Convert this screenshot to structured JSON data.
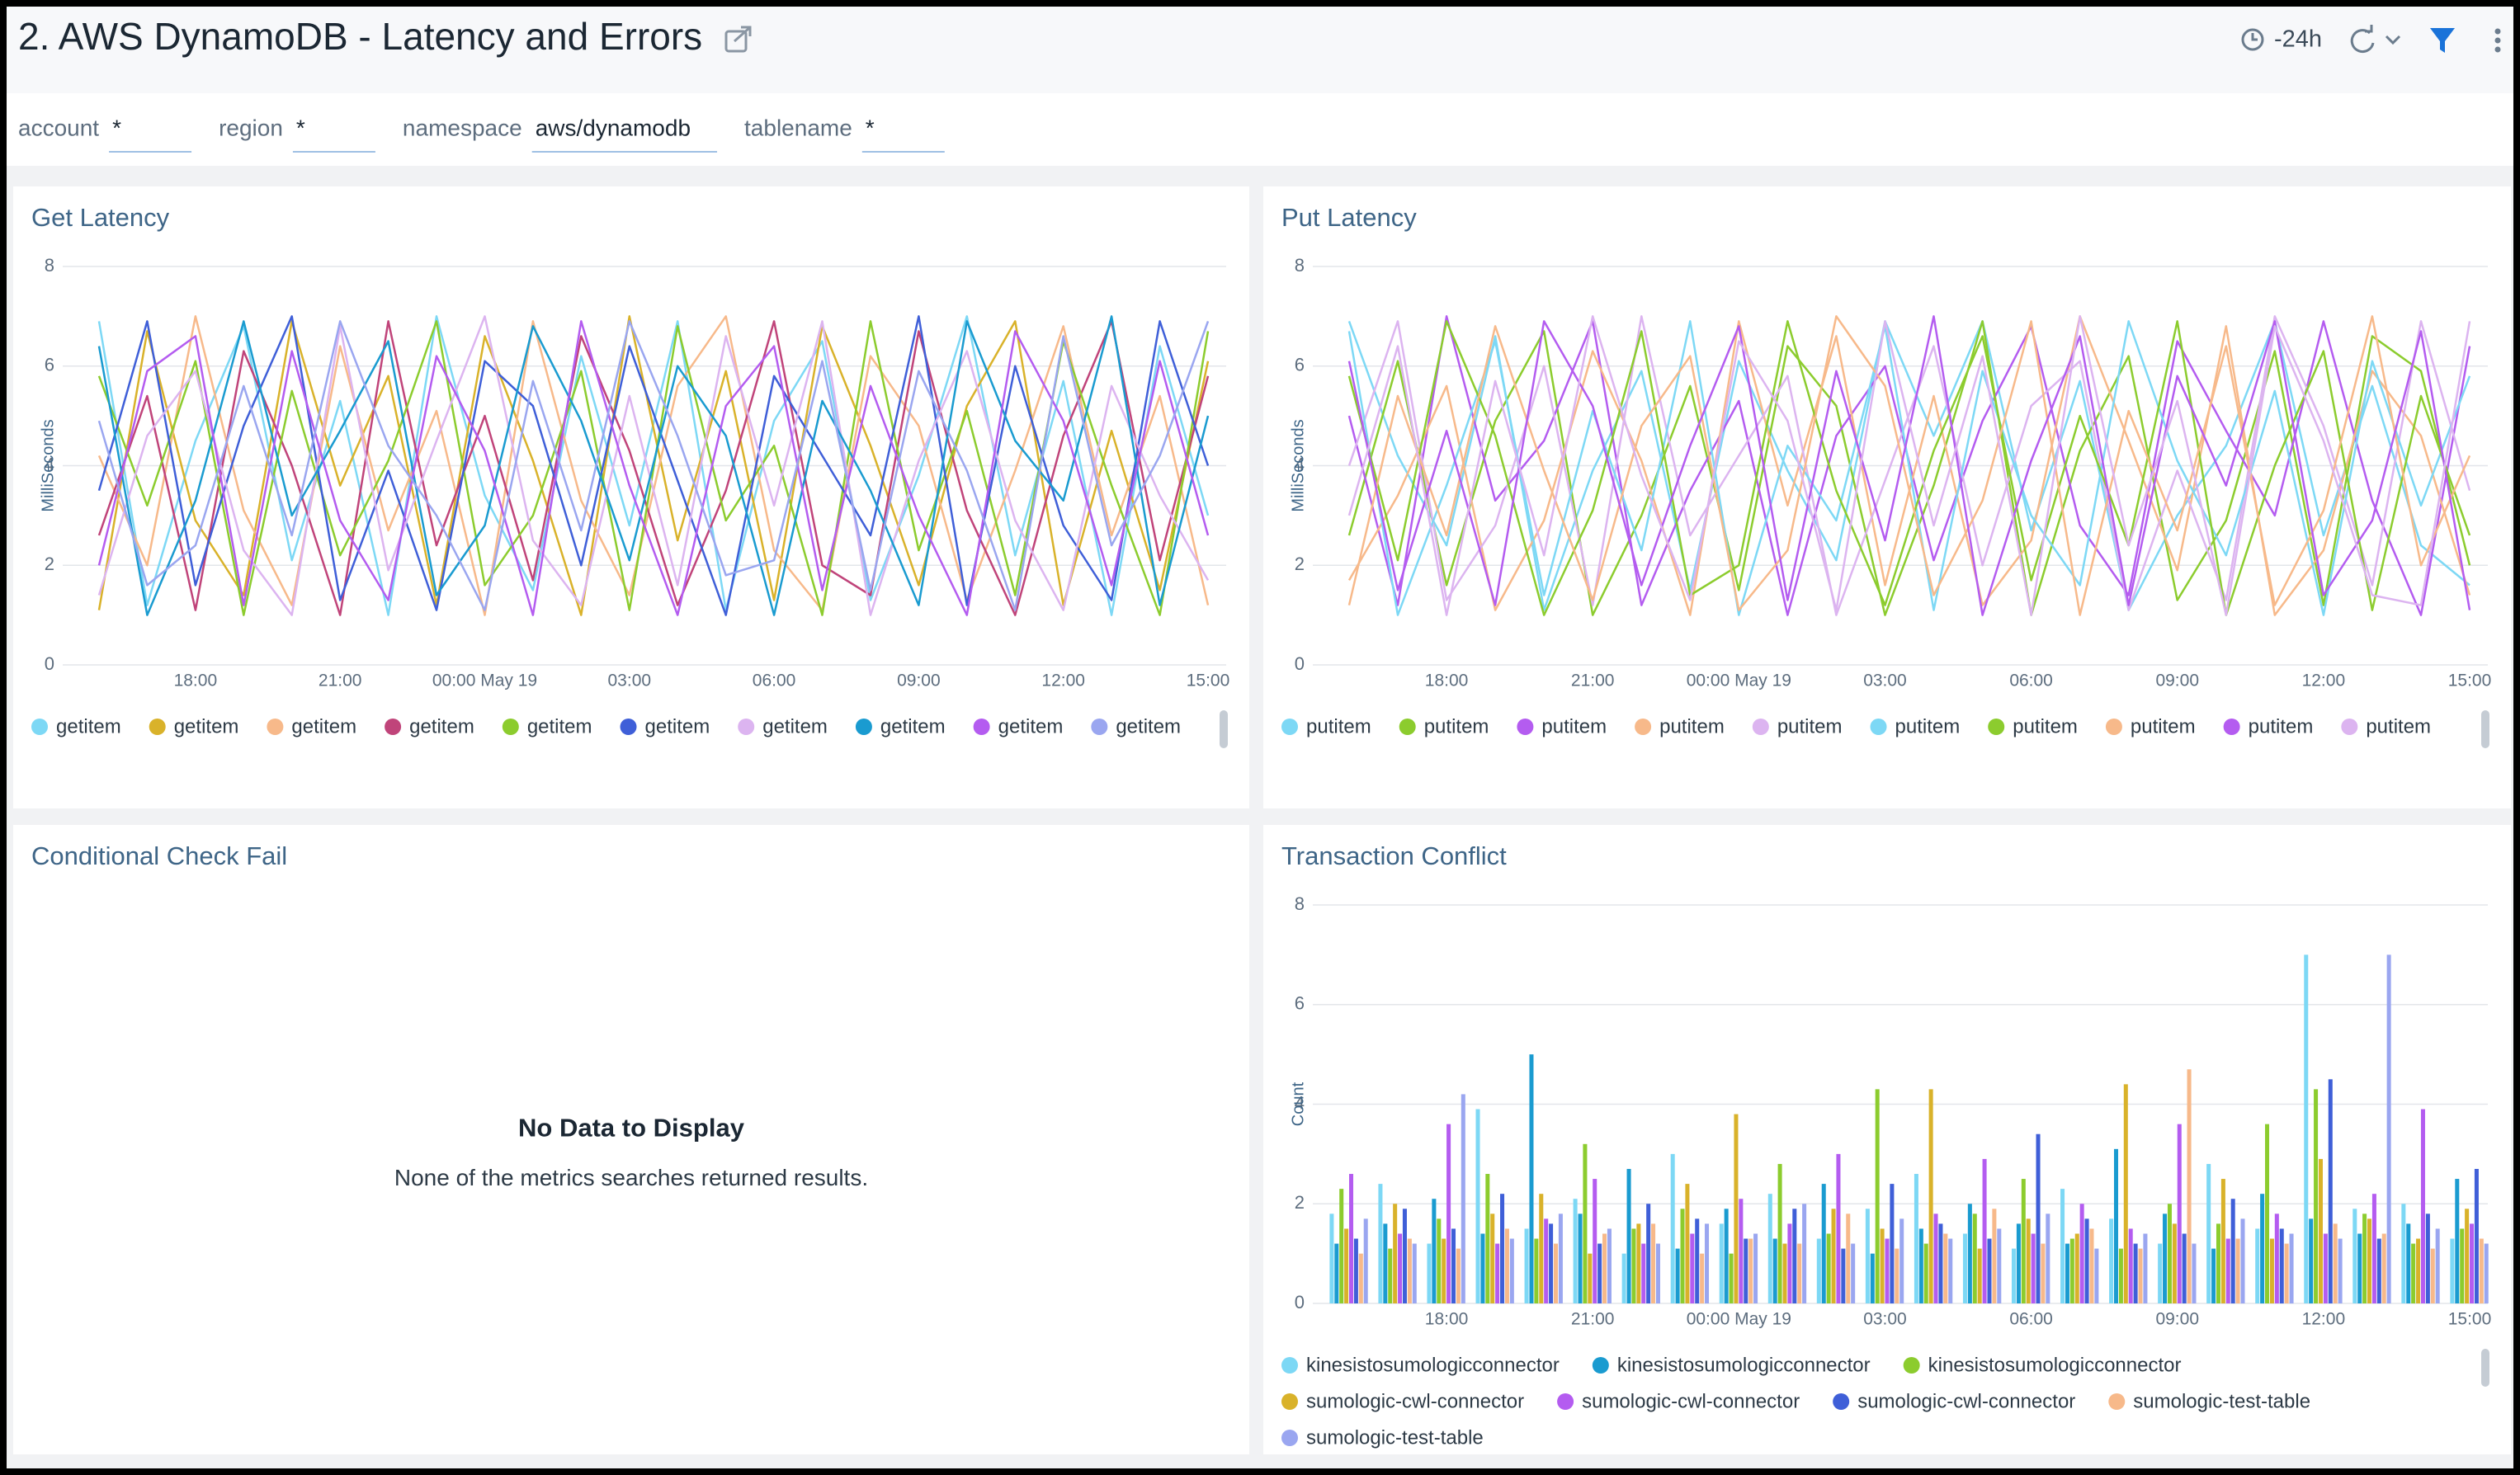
{
  "header": {
    "title": "2. AWS DynamoDB - Latency and Errors",
    "time_range": "-24h"
  },
  "filters": [
    {
      "label": "account",
      "value": "*"
    },
    {
      "label": "region",
      "value": "*"
    },
    {
      "label": "namespace",
      "value": "aws/dynamodb"
    },
    {
      "label": "tablename",
      "value": "*"
    }
  ],
  "chart_data": [
    {
      "type": "line",
      "title": "Get Latency",
      "y_label": "MilliSeconds",
      "x": [
        "16:00",
        "17:00",
        "18:00",
        "19:00",
        "20:00",
        "21:00",
        "22:00",
        "23:00",
        "00:00 May 19",
        "01:00",
        "02:00",
        "03:00",
        "04:00",
        "05:00",
        "06:00",
        "07:00",
        "08:00",
        "09:00",
        "10:00",
        "11:00",
        "12:00",
        "13:00",
        "14:00",
        "15:00"
      ],
      "xticks": [
        "18:00",
        "21:00",
        "00:00 May 19",
        "03:00",
        "06:00",
        "09:00",
        "12:00",
        "15:00"
      ],
      "ylim": [
        0,
        8
      ],
      "yticks": [
        0,
        2,
        4,
        6,
        8
      ],
      "grid": true,
      "series": [
        {
          "name": "getitem",
          "color": "#7dd8f5",
          "values": [
            6.9,
            1.2,
            4.5,
            6.8,
            2.1,
            5.3,
            1.0,
            7.0,
            3.4,
            1.5,
            6.2,
            2.8,
            6.9,
            1.1,
            4.9,
            6.5,
            1.3,
            3.8,
            7.0,
            2.2,
            5.7,
            1.0,
            6.4,
            3.0
          ]
        },
        {
          "name": "getitem",
          "color": "#d9b22a",
          "values": [
            1.1,
            6.7,
            2.9,
            1.4,
            6.9,
            3.6,
            5.8,
            1.2,
            6.6,
            4.1,
            1.0,
            7.0,
            2.5,
            5.9,
            1.3,
            6.8,
            4.4,
            1.6,
            5.2,
            6.9,
            1.2,
            4.7,
            1.5,
            6.1
          ]
        },
        {
          "name": "getitem",
          "color": "#f7b98a",
          "values": [
            4.2,
            2.0,
            7.0,
            3.1,
            1.2,
            6.4,
            2.7,
            5.1,
            1.0,
            6.9,
            3.3,
            1.4,
            5.6,
            7.0,
            2.3,
            1.1,
            6.2,
            4.8,
            1.3,
            3.9,
            6.8,
            2.6,
            5.4,
            1.2
          ]
        },
        {
          "name": "getitem",
          "color": "#c0447a",
          "values": [
            2.6,
            5.4,
            1.1,
            6.3,
            4.0,
            1.0,
            6.9,
            2.4,
            5.0,
            1.7,
            6.6,
            4.3,
            1.2,
            3.5,
            6.9,
            2.0,
            1.4,
            6.7,
            3.1,
            1.0,
            4.6,
            6.9,
            2.1,
            5.8
          ]
        },
        {
          "name": "getitem",
          "color": "#8ccc2e",
          "values": [
            5.8,
            3.2,
            6.1,
            1.0,
            5.5,
            2.2,
            4.1,
            6.9,
            1.6,
            3.0,
            5.9,
            1.1,
            6.8,
            2.9,
            4.4,
            1.0,
            6.9,
            2.3,
            5.1,
            1.4,
            6.5,
            3.6,
            1.0,
            6.7
          ]
        },
        {
          "name": "getitem",
          "color": "#3f5fd8",
          "values": [
            3.5,
            6.9,
            1.6,
            4.8,
            7.0,
            1.3,
            3.9,
            1.1,
            6.1,
            5.2,
            2.0,
            6.4,
            3.7,
            1.0,
            5.8,
            4.2,
            2.6,
            7.0,
            1.2,
            6.0,
            2.8,
            1.3,
            6.9,
            4.0
          ]
        },
        {
          "name": "getitem",
          "color": "#dcb4f0",
          "values": [
            1.4,
            4.6,
            5.9,
            2.3,
            1.0,
            6.8,
            1.9,
            4.5,
            7.0,
            2.5,
            1.2,
            5.4,
            1.6,
            6.6,
            3.2,
            6.9,
            1.0,
            4.1,
            6.3,
            2.9,
            1.1,
            5.6,
            3.4,
            1.7
          ]
        },
        {
          "name": "getitem",
          "color": "#1a9bd0",
          "values": [
            6.4,
            1.0,
            3.3,
            6.9,
            3.0,
            4.7,
            6.5,
            1.4,
            2.8,
            6.8,
            4.9,
            2.1,
            6.0,
            4.6,
            1.0,
            5.3,
            3.5,
            1.2,
            6.9,
            4.5,
            3.3,
            7.0,
            1.2,
            5.0
          ]
        },
        {
          "name": "getitem",
          "color": "#b45cf0",
          "values": [
            2.0,
            5.9,
            6.6,
            1.2,
            6.3,
            2.9,
            1.3,
            6.2,
            4.3,
            1.0,
            6.9,
            3.6,
            1.0,
            5.2,
            6.4,
            1.5,
            5.6,
            3.0,
            1.0,
            6.7,
            4.9,
            1.6,
            6.1,
            2.6
          ]
        },
        {
          "name": "getitem",
          "color": "#9aa6f0",
          "values": [
            4.9,
            1.6,
            2.4,
            5.6,
            2.6,
            6.9,
            4.4,
            3.0,
            1.1,
            5.7,
            2.7,
            6.9,
            4.6,
            1.8,
            2.1,
            6.1,
            1.5,
            5.9,
            3.9,
            1.1,
            6.6,
            2.4,
            4.2,
            6.9
          ]
        }
      ]
    },
    {
      "type": "line",
      "title": "Put Latency",
      "y_label": "MilliSeconds",
      "x": [
        "16:00",
        "17:00",
        "18:00",
        "19:00",
        "20:00",
        "21:00",
        "22:00",
        "23:00",
        "00:00 May 19",
        "01:00",
        "02:00",
        "03:00",
        "04:00",
        "05:00",
        "06:00",
        "07:00",
        "08:00",
        "09:00",
        "10:00",
        "11:00",
        "12:00",
        "13:00",
        "14:00",
        "15:00"
      ],
      "xticks": [
        "18:00",
        "21:00",
        "00:00 May 19",
        "03:00",
        "06:00",
        "09:00",
        "12:00",
        "15:00"
      ],
      "ylim": [
        0,
        8
      ],
      "yticks": [
        0,
        2,
        4,
        6,
        8
      ],
      "grid": true,
      "series": [
        {
          "name": "putitem",
          "color": "#7dd8f5",
          "values": [
            6.9,
            4.2,
            2.4,
            6.6,
            1.1,
            3.9,
            5.9,
            1.5,
            6.1,
            3.9,
            2.1,
            6.9,
            4.6,
            6.9,
            2.7,
            5.7,
            1.1,
            3.0,
            4.4,
            6.9,
            2.6,
            5.6,
            2.4,
            1.6
          ]
        },
        {
          "name": "putitem",
          "color": "#8ccc2e",
          "values": [
            2.6,
            6.1,
            1.6,
            4.9,
            6.7,
            1.0,
            3.0,
            5.6,
            1.5,
            6.4,
            5.2,
            1.0,
            3.6,
            6.9,
            1.0,
            4.3,
            6.2,
            1.3,
            2.9,
            6.3,
            1.2,
            6.6,
            5.9,
            2.0
          ]
        },
        {
          "name": "putitem",
          "color": "#b45cf0",
          "values": [
            5.0,
            1.2,
            7.0,
            3.3,
            4.5,
            6.9,
            1.2,
            3.5,
            5.3,
            1.0,
            4.6,
            6.0,
            2.1,
            4.9,
            6.8,
            2.8,
            1.4,
            6.5,
            4.7,
            3.0,
            6.9,
            3.3,
            1.0,
            6.4
          ]
        },
        {
          "name": "putitem",
          "color": "#f7b98a",
          "values": [
            1.7,
            3.4,
            5.6,
            1.1,
            2.9,
            6.3,
            4.1,
            1.0,
            6.9,
            3.2,
            6.6,
            1.6,
            5.4,
            1.2,
            2.5,
            7.0,
            4.5,
            1.9,
            6.8,
            1.0,
            2.3,
            5.9,
            4.6,
            1.4
          ]
        },
        {
          "name": "putitem",
          "color": "#dcb4f0",
          "values": [
            4.0,
            6.9,
            1.3,
            2.8,
            6.0,
            1.2,
            7.0,
            2.6,
            4.2,
            5.8,
            1.0,
            3.7,
            6.4,
            2.0,
            5.2,
            6.1,
            1.1,
            3.9,
            1.3,
            7.0,
            4.8,
            1.6,
            6.9,
            3.5
          ]
        },
        {
          "name": "putitem",
          "color": "#7dd8f5",
          "values": [
            6.7,
            1.0,
            3.6,
            6.5,
            1.4,
            5.1,
            2.3,
            6.9,
            1.0,
            4.4,
            2.9,
            6.8,
            1.1,
            5.9,
            3.0,
            1.6,
            6.9,
            4.1,
            2.2,
            5.5,
            1.0,
            6.1,
            3.2,
            5.8
          ]
        },
        {
          "name": "putitem",
          "color": "#8ccc2e",
          "values": [
            5.8,
            2.1,
            6.9,
            4.6,
            1.0,
            3.1,
            6.7,
            1.4,
            2.0,
            6.9,
            3.5,
            1.2,
            4.3,
            6.6,
            1.7,
            5.0,
            2.4,
            6.9,
            1.0,
            4.0,
            6.3,
            1.1,
            5.4,
            2.6
          ]
        },
        {
          "name": "putitem",
          "color": "#f7b98a",
          "values": [
            1.2,
            5.4,
            2.6,
            6.8,
            3.9,
            1.3,
            4.8,
            6.2,
            1.1,
            2.3,
            7.0,
            5.6,
            1.4,
            3.3,
            6.9,
            1.0,
            5.1,
            2.7,
            6.4,
            1.2,
            3.1,
            7.0,
            2.0,
            4.2
          ]
        },
        {
          "name": "putitem",
          "color": "#b45cf0",
          "values": [
            6.1,
            1.5,
            4.7,
            1.2,
            6.9,
            5.2,
            1.6,
            4.4,
            6.8,
            1.3,
            5.9,
            2.5,
            7.0,
            1.0,
            4.1,
            6.6,
            1.2,
            5.8,
            3.6,
            6.9,
            1.4,
            2.9,
            6.7,
            1.1
          ]
        },
        {
          "name": "putitem",
          "color": "#dcb4f0",
          "values": [
            3.0,
            6.4,
            1.0,
            5.7,
            2.2,
            7.0,
            3.8,
            1.3,
            6.5,
            4.9,
            1.1,
            6.9,
            2.8,
            6.2,
            1.0,
            7.0,
            2.4,
            5.3,
            1.0,
            6.8,
            4.5,
            1.4,
            1.2,
            6.9
          ]
        }
      ]
    },
    {
      "type": "empty",
      "title": "Conditional Check Fail",
      "message": "No Data to Display",
      "detail": "None of the metrics searches returned results."
    },
    {
      "type": "bar",
      "title": "Transaction Conflict",
      "y_label": "Count",
      "x": [
        "16:00",
        "17:00",
        "18:00",
        "19:00",
        "20:00",
        "21:00",
        "22:00",
        "23:00",
        "00:00 May 19",
        "01:00",
        "02:00",
        "03:00",
        "04:00",
        "05:00",
        "06:00",
        "07:00",
        "08:00",
        "09:00",
        "10:00",
        "11:00",
        "12:00",
        "13:00",
        "14:00",
        "15:00"
      ],
      "xticks": [
        "18:00",
        "21:00",
        "00:00 May 19",
        "03:00",
        "06:00",
        "09:00",
        "12:00",
        "15:00"
      ],
      "ylim": [
        0,
        8
      ],
      "yticks": [
        0,
        2,
        4,
        6,
        8
      ],
      "grid": true,
      "series": [
        {
          "name": "kinesistosumologicconnector",
          "color": "#7dd8f5",
          "values": [
            1.8,
            2.4,
            1.2,
            3.9,
            1.5,
            2.1,
            1.0,
            3.0,
            1.6,
            2.2,
            1.3,
            1.9,
            2.6,
            1.4,
            1.1,
            2.3,
            1.7,
            1.2,
            2.8,
            1.5,
            7.0,
            1.9,
            2.0,
            1.3
          ]
        },
        {
          "name": "kinesistosumologicconnector",
          "color": "#1a9bd0",
          "values": [
            1.2,
            1.6,
            2.1,
            1.4,
            5.0,
            1.8,
            2.7,
            1.1,
            1.9,
            1.3,
            2.4,
            1.0,
            1.5,
            2.0,
            1.6,
            1.2,
            3.1,
            1.8,
            1.1,
            2.2,
            1.7,
            1.4,
            1.6,
            2.5
          ]
        },
        {
          "name": "kinesistosumologicconnector",
          "color": "#8ccc2e",
          "values": [
            2.3,
            1.1,
            1.7,
            2.6,
            1.3,
            3.2,
            1.5,
            1.9,
            1.0,
            2.8,
            1.4,
            4.3,
            1.2,
            1.8,
            2.5,
            1.3,
            1.1,
            2.0,
            1.6,
            3.6,
            4.3,
            1.8,
            1.2,
            1.5
          ]
        },
        {
          "name": "sumologic-cwl-connector",
          "color": "#d9b22a",
          "values": [
            1.5,
            2.0,
            1.3,
            1.8,
            2.2,
            1.0,
            1.6,
            2.4,
            3.8,
            1.2,
            1.9,
            1.5,
            4.3,
            1.1,
            1.7,
            1.4,
            4.4,
            1.6,
            2.5,
            1.3,
            2.9,
            1.7,
            1.3,
            1.9
          ]
        },
        {
          "name": "sumologic-cwl-connector",
          "color": "#b45cf0",
          "values": [
            2.6,
            1.4,
            3.6,
            1.2,
            1.7,
            2.5,
            1.2,
            1.4,
            2.1,
            1.6,
            3.0,
            1.3,
            1.8,
            2.9,
            1.4,
            2.0,
            1.5,
            3.6,
            1.3,
            1.8,
            1.4,
            2.2,
            3.9,
            1.6
          ]
        },
        {
          "name": "sumologic-cwl-connector",
          "color": "#3f5fd8",
          "values": [
            1.3,
            1.9,
            1.5,
            2.2,
            1.6,
            1.2,
            2.0,
            1.7,
            1.3,
            1.9,
            1.1,
            2.4,
            1.6,
            1.3,
            3.4,
            1.7,
            1.2,
            1.4,
            2.1,
            1.5,
            4.5,
            1.3,
            1.8,
            2.7
          ]
        },
        {
          "name": "sumologic-test-table",
          "color": "#f7b98a",
          "values": [
            1.0,
            1.3,
            1.1,
            1.5,
            1.2,
            1.4,
            1.6,
            1.0,
            1.3,
            1.2,
            1.8,
            1.1,
            1.4,
            1.9,
            1.2,
            1.5,
            1.1,
            4.7,
            1.3,
            1.2,
            1.6,
            1.4,
            1.1,
            1.3
          ]
        },
        {
          "name": "sumologic-test-table",
          "color": "#9aa6f0",
          "values": [
            1.7,
            1.2,
            4.2,
            1.3,
            1.8,
            1.5,
            1.2,
            1.6,
            1.4,
            2.0,
            1.2,
            1.7,
            1.3,
            1.5,
            1.8,
            1.1,
            1.4,
            1.2,
            1.7,
            1.4,
            1.3,
            7.0,
            1.5,
            1.2
          ]
        }
      ]
    }
  ]
}
